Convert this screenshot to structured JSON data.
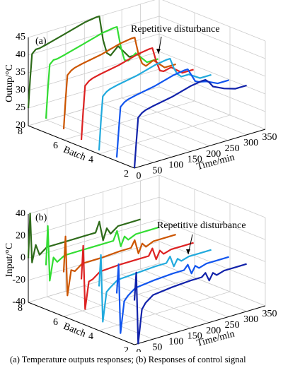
{
  "chart_data": [
    {
      "type": "line3d",
      "panel": "(a)",
      "annotation": "Repetitive disturbance",
      "xlabel": "Time/min",
      "ylabel": "Batch",
      "zlabel": "Outup/°C",
      "xlim": [
        0,
        350
      ],
      "xticks": [
        0,
        50,
        100,
        150,
        200,
        250,
        300,
        350
      ],
      "batchlim": [
        2,
        8
      ],
      "batchticks": [
        2,
        4,
        6,
        8
      ],
      "zlim": [
        20,
        45
      ],
      "zticks": [
        20,
        25,
        30,
        35,
        40,
        45
      ],
      "grid": true,
      "x": [
        0,
        5,
        10,
        20,
        30,
        50,
        100,
        150,
        180,
        190,
        200,
        210,
        220,
        240,
        270,
        300
      ],
      "series": [
        {
          "batch": 8,
          "color": "#2e6b1a",
          "values": [
            25,
            33,
            40,
            41,
            41,
            41.5,
            43,
            44.5,
            45,
            45,
            38,
            34,
            33,
            35,
            31,
            31
          ]
        },
        {
          "batch": 7,
          "color": "#33dd33",
          "values": [
            24,
            32,
            39,
            40,
            40,
            40.5,
            42,
            43.5,
            44,
            44,
            38,
            34,
            33.5,
            35,
            31.5,
            31.5
          ]
        },
        {
          "batch": 6,
          "color": "#cc5500",
          "values": [
            23,
            31,
            38,
            39,
            39.5,
            40,
            41,
            42.5,
            43,
            43,
            38,
            35,
            34,
            35,
            32,
            32
          ]
        },
        {
          "batch": 5,
          "color": "#dd2222",
          "values": [
            22,
            30,
            37,
            38,
            38.5,
            39,
            40,
            41.5,
            42,
            42,
            38,
            35,
            34.5,
            35,
            32.5,
            32.5
          ]
        },
        {
          "batch": 4,
          "color": "#22aadd",
          "values": [
            21,
            29,
            36,
            37,
            37.5,
            38,
            39,
            40.5,
            41,
            41,
            38,
            36,
            35,
            35,
            33,
            33
          ]
        },
        {
          "batch": 3,
          "color": "#1155ee",
          "values": [
            21,
            28,
            35,
            36,
            36.5,
            37,
            38,
            39.5,
            40,
            40,
            38,
            36,
            35.5,
            35,
            33.5,
            33.5
          ]
        },
        {
          "batch": 2,
          "color": "#1122aa",
          "values": [
            20,
            27,
            34,
            35,
            35.5,
            36,
            37,
            38.5,
            39,
            39,
            38,
            36.5,
            36,
            35,
            34,
            34
          ]
        }
      ]
    },
    {
      "type": "line3d",
      "panel": "(b)",
      "annotation": "Repetitive disturbance",
      "xlabel": "Time/min",
      "ylabel": "Batch",
      "zlabel": "Input/°C",
      "xlim": [
        0,
        350
      ],
      "xticks": [
        0,
        50,
        100,
        150,
        200,
        250,
        300,
        350
      ],
      "batchlim": [
        2,
        8
      ],
      "batchticks": [
        2,
        4,
        6,
        8
      ],
      "zlim": [
        -40,
        40
      ],
      "zticks": [
        -40,
        -20,
        0,
        20,
        40
      ],
      "grid": true,
      "x": [
        0,
        5,
        10,
        20,
        30,
        50,
        100,
        150,
        180,
        190,
        200,
        210,
        220,
        240,
        270,
        300
      ],
      "series": [
        {
          "batch": 8,
          "color": "#2e6b1a",
          "values": [
            0,
            40,
            -5,
            10,
            0,
            5,
            5,
            5,
            5,
            14,
            -4,
            6,
            0,
            5,
            5,
            5
          ]
        },
        {
          "batch": 7,
          "color": "#33dd33",
          "values": [
            0,
            35,
            -15,
            5,
            0,
            4,
            4,
            4,
            4,
            12,
            -3,
            5,
            1,
            4,
            4,
            4
          ]
        },
        {
          "batch": 6,
          "color": "#cc5500",
          "values": [
            0,
            32,
            -22,
            0,
            -2,
            3,
            3,
            4,
            4,
            10,
            -3,
            5,
            1,
            4,
            4,
            4
          ]
        },
        {
          "batch": 5,
          "color": "#dd2222",
          "values": [
            0,
            30,
            -28,
            -4,
            -3,
            2,
            3,
            3,
            3,
            9,
            -2,
            5,
            1,
            3,
            3,
            3
          ]
        },
        {
          "batch": 4,
          "color": "#22aadd",
          "values": [
            0,
            28,
            -33,
            -7,
            -4,
            1,
            2,
            3,
            3,
            8,
            -2,
            4,
            1,
            3,
            3,
            3
          ]
        },
        {
          "batch": 3,
          "color": "#1155ee",
          "values": [
            0,
            26,
            -37,
            -9,
            -5,
            0,
            2,
            3,
            3,
            7,
            -2,
            4,
            1,
            3,
            3,
            3
          ]
        },
        {
          "batch": 2,
          "color": "#1122aa",
          "values": [
            0,
            25,
            -40,
            -10,
            -5,
            0,
            2,
            3,
            3,
            6,
            -2,
            4,
            1,
            3,
            3,
            3
          ]
        }
      ]
    }
  ],
  "caption": "(a) Temperature outputs responses; (b) Responses of control signal"
}
